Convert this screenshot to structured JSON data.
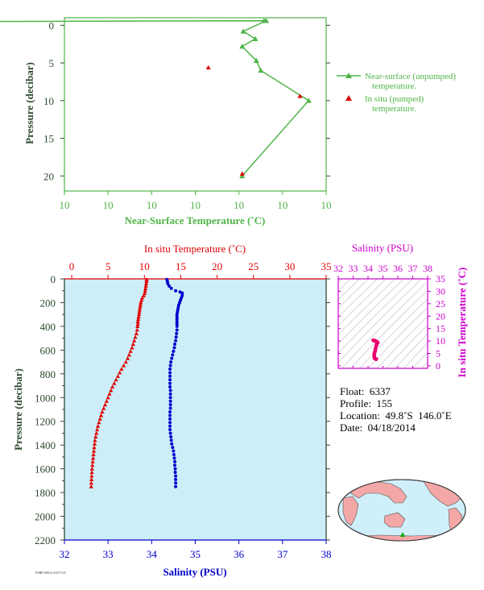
{
  "colors": {
    "near_surface": "#4fb548",
    "in_situ_temp": "#e00000",
    "salinity": "#0000cc",
    "salinity_axis_magenta": "#cc00cc",
    "axis_dark": "#2e4a2e",
    "plot_bg": "#cdeef8",
    "sal_marks": "#e8006e",
    "land": "#f4a7a7",
    "ocean": "#cfeffb"
  },
  "chart_data": [
    {
      "type": "line",
      "id": "near-surface",
      "xlabel": "Near-Surface Temperature (˚C)",
      "ylabel": "Pressure (decibar)",
      "x_tick_labels": [
        "10",
        "10",
        "10",
        "10",
        "10",
        "10",
        "10"
      ],
      "y_ticks": [
        0,
        5,
        10,
        15,
        20
      ],
      "xlim": [
        9.0,
        10.2
      ],
      "ylim": [
        22,
        -1
      ],
      "y_inverted": true,
      "legend_position": "right",
      "series": [
        {
          "name": "Near-surface (unpumped) temperature.",
          "marker": "triangle",
          "color": "#4fb548",
          "x": [
            8.6,
            9.915,
            9.925,
            9.82,
            9.875,
            9.815,
            9.88,
            9.9,
            10.12,
            9.815
          ],
          "y": [
            -0.5,
            -0.6,
            -0.6,
            0.8,
            1.8,
            2.8,
            4.7,
            6.0,
            10.0,
            20.0
          ]
        },
        {
          "name": "In situ (pumped) temperature.",
          "marker": "triangle",
          "color": "#e00000",
          "x": [
            9.66,
            10.08,
            9.815
          ],
          "y": [
            5.6,
            9.4,
            19.7
          ]
        }
      ]
    },
    {
      "type": "scatter",
      "id": "main-profile",
      "xlabel_top": "In situ Temperature (˚C)",
      "xlabel_bottom": "Salinity (PSU)",
      "ylabel": "Pressure (decibar)",
      "temp_ticks": [
        0,
        5,
        10,
        15,
        20,
        25,
        30,
        35
      ],
      "sal_ticks": [
        32,
        33,
        34,
        35,
        36,
        37,
        38
      ],
      "y_ticks": [
        0,
        200,
        400,
        600,
        800,
        1000,
        1200,
        1400,
        1600,
        1800,
        2000,
        2200
      ],
      "temp_lim": [
        -1,
        35
      ],
      "sal_lim": [
        32,
        38
      ],
      "ylim": [
        2200,
        0
      ],
      "y_inverted": true,
      "temperature": {
        "p": [
          5,
          20,
          40,
          60,
          80,
          100,
          120,
          140,
          160,
          180,
          200,
          220,
          240,
          260,
          280,
          300,
          320,
          340,
          360,
          380,
          400,
          430,
          460,
          490,
          520,
          550,
          580,
          610,
          640,
          670,
          700,
          730,
          760,
          790,
          820,
          850,
          880,
          910,
          940,
          970,
          1000,
          1030,
          1060,
          1090,
          1120,
          1150,
          1180,
          1210,
          1240,
          1270,
          1300,
          1330,
          1360,
          1390,
          1420,
          1450,
          1480,
          1510,
          1540,
          1570,
          1600,
          1630,
          1660,
          1690,
          1720,
          1750
        ],
        "t": [
          10.3,
          10.3,
          10.25,
          10.2,
          10.15,
          10.1,
          10.05,
          9.9,
          9.7,
          9.6,
          9.5,
          9.45,
          9.4,
          9.35,
          9.3,
          9.25,
          9.2,
          9.15,
          9.1,
          9.1,
          9.05,
          9.0,
          8.9,
          8.75,
          8.6,
          8.45,
          8.3,
          8.1,
          7.9,
          7.7,
          7.45,
          7.15,
          6.85,
          6.6,
          6.35,
          6.1,
          5.85,
          5.6,
          5.4,
          5.2,
          5.0,
          4.8,
          4.6,
          4.4,
          4.2,
          4.05,
          3.9,
          3.75,
          3.6,
          3.5,
          3.4,
          3.3,
          3.2,
          3.15,
          3.1,
          3.05,
          3.0,
          2.95,
          2.9,
          2.85,
          2.8,
          2.78,
          2.75,
          2.72,
          2.7,
          2.68
        ]
      },
      "salinity": {
        "p": [
          5,
          20,
          40,
          60,
          80,
          100,
          110,
          120,
          140,
          160,
          180,
          200,
          220,
          240,
          260,
          280,
          300,
          320,
          340,
          360,
          380,
          400,
          430,
          460,
          490,
          520,
          550,
          580,
          610,
          640,
          670,
          700,
          730,
          760,
          790,
          820,
          850,
          880,
          910,
          940,
          970,
          1000,
          1030,
          1060,
          1090,
          1120,
          1150,
          1180,
          1210,
          1240,
          1270,
          1300,
          1330,
          1360,
          1390,
          1420,
          1450,
          1480,
          1510,
          1540,
          1570,
          1600,
          1630,
          1660,
          1690,
          1720,
          1750
        ],
        "s": [
          34.35,
          34.36,
          34.37,
          34.4,
          34.45,
          34.55,
          34.65,
          34.7,
          34.7,
          34.68,
          34.66,
          34.64,
          34.62,
          34.61,
          34.6,
          34.59,
          34.58,
          34.58,
          34.58,
          34.58,
          34.58,
          34.58,
          34.58,
          34.57,
          34.56,
          34.55,
          34.53,
          34.52,
          34.5,
          34.48,
          34.46,
          34.44,
          34.43,
          34.42,
          34.42,
          34.42,
          34.42,
          34.42,
          34.42,
          34.43,
          34.43,
          34.43,
          34.43,
          34.43,
          34.43,
          34.42,
          34.42,
          34.42,
          34.42,
          34.42,
          34.42,
          34.43,
          34.44,
          34.45,
          34.46,
          34.48,
          34.5,
          34.51,
          34.52,
          34.53,
          34.53,
          34.54,
          34.54,
          34.55,
          34.55,
          34.55,
          34.55
        ]
      }
    },
    {
      "type": "scatter",
      "id": "ts-diagram",
      "xlabel": "Salinity (PSU)",
      "ylabel": "In situ Temperature (˚C)",
      "x_ticks": [
        32,
        33,
        34,
        35,
        36,
        37,
        38
      ],
      "y_ticks": [
        0,
        5,
        10,
        15,
        20,
        25,
        30,
        35
      ],
      "xlim": [
        32,
        38
      ],
      "ylim": [
        -1,
        35
      ],
      "color": "#e8006e",
      "points_s": [
        34.35,
        34.4,
        34.5,
        34.62,
        34.65,
        34.6,
        34.58,
        34.55,
        34.5,
        34.48,
        34.43,
        34.42,
        34.42,
        34.43,
        34.45,
        34.5,
        34.55
      ],
      "points_t": [
        10.3,
        10.2,
        10.0,
        9.6,
        9.3,
        9.0,
        8.6,
        8.0,
        7.0,
        6.0,
        5.2,
        4.4,
        3.8,
        3.3,
        3.0,
        2.8,
        2.7
      ]
    }
  ],
  "info": {
    "float": "Float:  6337",
    "profile": "Profile:  155",
    "location": "Location:  49.8˚S  146.0˚E",
    "date": "Date:  04/18/2014"
  },
  "footer_code": "FSRP/ARGO 6337/155"
}
